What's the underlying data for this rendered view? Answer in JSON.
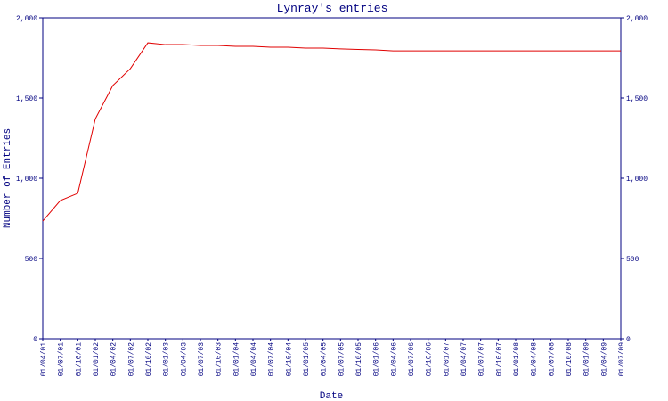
{
  "chart_data": {
    "type": "line",
    "title": "Lynray's entries",
    "y_label": "Number of Entries",
    "x_label": "Date",
    "categories": [
      "01/04/01",
      "01/07/01",
      "01/10/01",
      "01/01/02",
      "01/04/02",
      "01/07/02",
      "01/10/02",
      "01/01/03",
      "01/04/03",
      "01/07/03",
      "01/10/03",
      "01/01/04",
      "01/04/04",
      "01/07/04",
      "01/10/04",
      "01/01/05",
      "01/04/05",
      "01/07/05",
      "01/10/05",
      "01/01/06",
      "01/04/06",
      "01/07/06",
      "01/10/06",
      "01/01/07",
      "01/04/07",
      "01/07/07",
      "01/10/07",
      "01/01/08",
      "01/04/08",
      "01/07/08",
      "01/10/08",
      "01/01/09",
      "01/04/09",
      "01/07/09"
    ],
    "series": [
      {
        "color": "#e00000",
        "values": [
          733,
          861,
          906,
          1370,
          1578,
          1683,
          1844,
          1833,
          1833,
          1828,
          1828,
          1822,
          1822,
          1817,
          1817,
          1811,
          1811,
          1806,
          1803,
          1800,
          1794,
          1794,
          1794,
          1794,
          1794,
          1794,
          1794,
          1794,
          1794,
          1794,
          1794,
          1794,
          1794,
          1794
        ]
      }
    ],
    "ylim": [
      0,
      2000
    ],
    "yticks": [
      0,
      500,
      {
        "value": 1000,
        "label": "1,000"
      },
      {
        "value": 1500,
        "label": "1,500"
      },
      {
        "value": 2000,
        "label": "2,000"
      }
    ],
    "axis_color": "#000080"
  }
}
